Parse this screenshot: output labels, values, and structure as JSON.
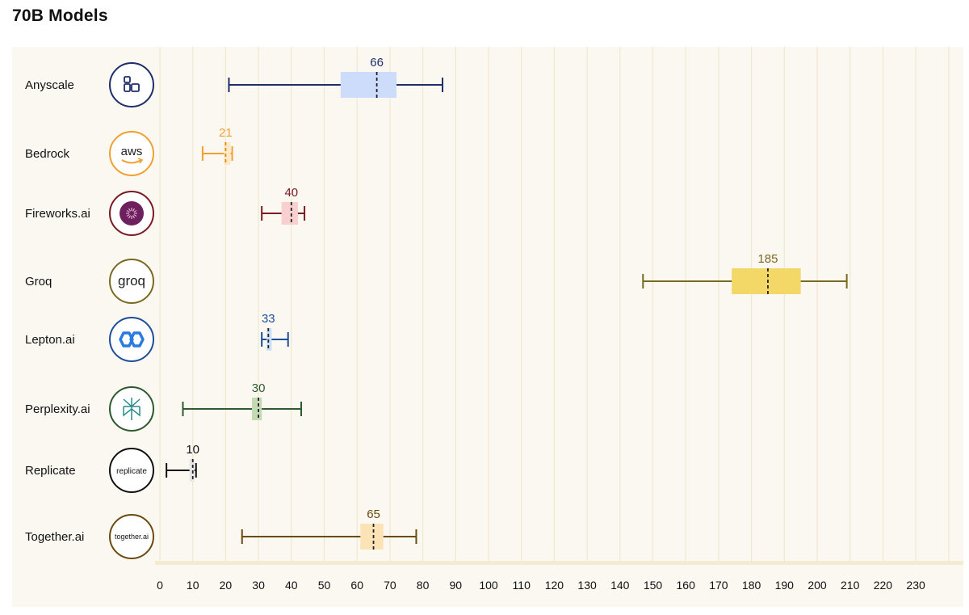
{
  "title": "70B Models",
  "chart_data": {
    "type": "boxplot",
    "orientation": "horizontal",
    "title": "70B Models",
    "xlim": [
      0,
      240
    ],
    "x_ticks": [
      0,
      10,
      20,
      30,
      40,
      50,
      60,
      70,
      80,
      90,
      100,
      110,
      120,
      130,
      140,
      150,
      160,
      170,
      180,
      190,
      200,
      210,
      220,
      230
    ],
    "grid": true,
    "series": [
      {
        "name": "Anyscale",
        "label": "66",
        "min": 21,
        "q1": 55,
        "median": 66,
        "q3": 72,
        "max": 86,
        "color": "#1e2d6b",
        "box_color": "#cddcfa",
        "logo": "anyscale-logo"
      },
      {
        "name": "Bedrock",
        "label": "21",
        "min": 13,
        "q1": 19.5,
        "median": 20,
        "q3": 21.5,
        "max": 22,
        "color": "#f0a030",
        "box_color": "#fde9c8",
        "logo": "aws-logo",
        "logo_text": "aws"
      },
      {
        "name": "Fireworks.ai",
        "label": "40",
        "min": 31,
        "q1": 37,
        "median": 40,
        "q3": 42,
        "max": 44,
        "color": "#7a1a22",
        "box_color": "#f8d0d0",
        "logo": "fireworks-logo"
      },
      {
        "name": "Groq",
        "label": "185",
        "min": 147,
        "q1": 174,
        "median": 185,
        "q3": 195,
        "max": 209,
        "color": "#7a6a20",
        "box_color": "#f3d868",
        "logo": "groq-logo",
        "logo_text": "groq"
      },
      {
        "name": "Lepton.ai",
        "label": "33",
        "min": 31,
        "q1": 32.5,
        "median": 33,
        "q3": 34,
        "max": 39,
        "color": "#1e4d9b",
        "box_color": "#c9def8",
        "logo": "lepton-logo"
      },
      {
        "name": "Perplexity.ai",
        "label": "30",
        "min": 7,
        "q1": 28,
        "median": 30,
        "q3": 31,
        "max": 43,
        "color": "#2e5a2e",
        "box_color": "#c3dab5",
        "logo": "perplexity-logo"
      },
      {
        "name": "Replicate",
        "label": "10",
        "min": 2,
        "q1": 9,
        "median": 10,
        "q3": 10.5,
        "max": 11,
        "color": "#111111",
        "box_color": "#e8e8e8",
        "logo": "replicate-logo",
        "logo_text": "replicate"
      },
      {
        "name": "Together.ai",
        "label": "65",
        "min": 25,
        "q1": 61,
        "median": 65,
        "q3": 68,
        "max": 78,
        "color": "#6b4a10",
        "box_color": "#fbe3b6",
        "logo": "together-logo",
        "logo_text": "together.ai"
      }
    ]
  }
}
